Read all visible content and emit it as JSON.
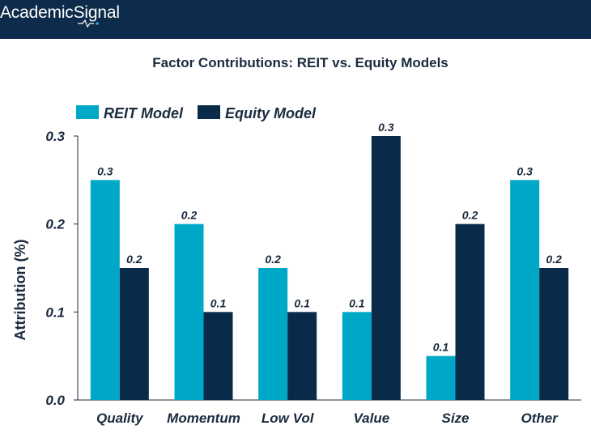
{
  "header": {
    "brand_prefix": "Academic",
    "brand_suffix": "Signal",
    "background": "#0d2b4a",
    "accent": "#2ea8d9"
  },
  "chart_data": {
    "type": "bar",
    "title": "Factor Contributions: REIT vs. Equity Models",
    "xlabel": "",
    "ylabel": "Attribution (%)",
    "categories": [
      "Quality",
      "Momentum",
      "Low Vol",
      "Value",
      "Size",
      "Other"
    ],
    "series": [
      {
        "name": "REIT Model",
        "color": "#00a8c8",
        "values": [
          0.25,
          0.2,
          0.15,
          0.1,
          0.05,
          0.25
        ],
        "labels": [
          "0.3",
          "0.2",
          "0.2",
          "0.1",
          "0.1",
          "0.3"
        ]
      },
      {
        "name": "Equity Model",
        "color": "#0a2a4a",
        "values": [
          0.15,
          0.1,
          0.1,
          0.3,
          0.2,
          0.15
        ],
        "labels": [
          "0.2",
          "0.1",
          "0.1",
          "0.3",
          "0.2",
          "0.2"
        ]
      }
    ],
    "ylim": [
      0,
      0.3
    ],
    "yticks": [
      "0.0",
      "0.1",
      "0.2",
      "0.3"
    ],
    "grid": false,
    "legend": "top-left"
  }
}
